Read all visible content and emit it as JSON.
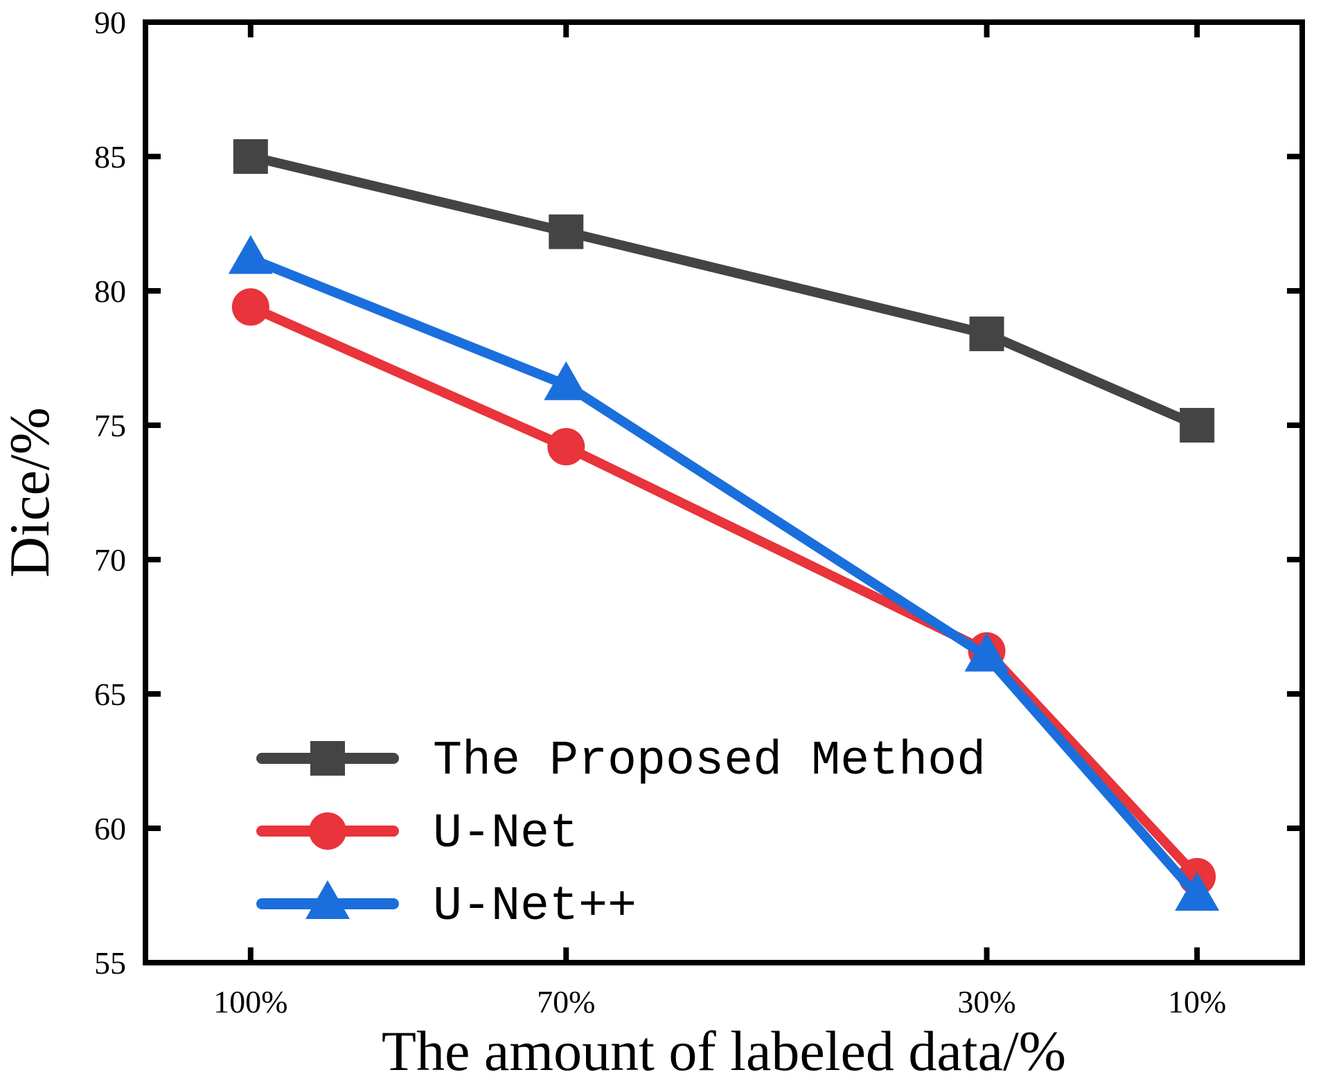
{
  "chart_data": {
    "type": "line",
    "title": "",
    "xlabel": "The amount of labeled data/%",
    "ylabel": "Dice/%",
    "categories": [
      "100%",
      "70%",
      "30%",
      "10%"
    ],
    "x": [
      100,
      70,
      30,
      10
    ],
    "xlim": [
      110,
      0
    ],
    "ylim": [
      55,
      90
    ],
    "yticks": [
      "55",
      "60",
      "65",
      "70",
      "75",
      "80",
      "85",
      "90"
    ],
    "legend_position": "bottom-left",
    "series": [
      {
        "name": "The Proposed Method",
        "values": [
          85.0,
          82.2,
          78.4,
          75.0
        ],
        "color": "#444444",
        "marker": "square"
      },
      {
        "name": "U-Net",
        "values": [
          79.4,
          74.2,
          66.6,
          58.2
        ],
        "color": "#e8343a",
        "marker": "circle"
      },
      {
        "name": "U-Net++",
        "values": [
          81.2,
          76.5,
          66.4,
          57.5
        ],
        "color": "#1a6fdc",
        "marker": "triangle"
      }
    ]
  }
}
